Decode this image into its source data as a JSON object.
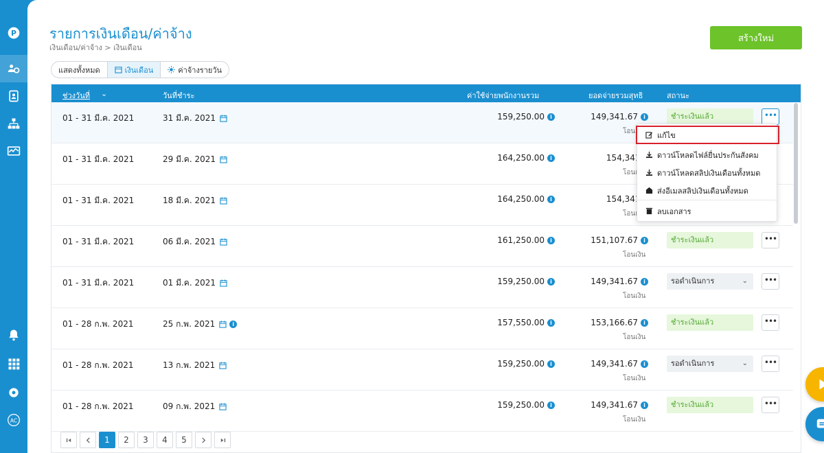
{
  "header": {
    "title": "รายการเงินเดือน/ค่าจ้าง",
    "breadcrumb": "เงินเดือน/ค่าจ้าง > เงินเดือน",
    "create_label": "สร้างใหม่"
  },
  "filters": [
    {
      "label": "แสดงทั้งหมด",
      "icon": "none"
    },
    {
      "label": "เงินเดือน",
      "icon": "calendar-icon",
      "active": true
    },
    {
      "label": "ค่าจ้างรายวัน",
      "icon": "sun-icon"
    }
  ],
  "table": {
    "columns": [
      "ช่วงวันที่",
      "วันที่ชำระ",
      "ค่าใช้จ่ายพนักงานรวม",
      "ยอดจ่ายรวมสุทธิ",
      "สถานะ"
    ],
    "rows": [
      {
        "period": "01 - 31 มี.ค. 2021",
        "pay_date": "31 มี.ค. 2021",
        "cost": "159,250.00",
        "net": "149,341.67",
        "net_sub": "โอนเงิน",
        "status": "ชำระเงินแล้ว",
        "status_type": "paid"
      },
      {
        "period": "01 - 31 มี.ค. 2021",
        "pay_date": "29 มี.ค. 2021",
        "cost": "164,250.00",
        "net": "154,341.6",
        "net_sub": "โอนเงิน",
        "status": "",
        "status_type": "hidden"
      },
      {
        "period": "01 - 31 มี.ค. 2021",
        "pay_date": "18 มี.ค. 2021",
        "cost": "164,250.00",
        "net": "154,341.6",
        "net_sub": "โอนเงิน",
        "status": "",
        "status_type": "hidden"
      },
      {
        "period": "01 - 31 มี.ค. 2021",
        "pay_date": "06 มี.ค. 2021",
        "cost": "161,250.00",
        "net": "151,107.67",
        "net_sub": "โอนเงิน",
        "status": "ชำระเงินแล้ว",
        "status_type": "paid"
      },
      {
        "period": "01 - 31 มี.ค. 2021",
        "pay_date": "01 มี.ค. 2021",
        "cost": "159,250.00",
        "net": "149,341.67",
        "net_sub": "โอนเงิน",
        "status": "รอดำเนินการ",
        "status_type": "pending"
      },
      {
        "period": "01 - 28 ก.พ. 2021",
        "pay_date": "25 ก.พ. 2021",
        "cost": "157,550.00",
        "net": "153,166.67",
        "net_sub": "โอนเงิน",
        "status": "ชำระเงินแล้ว",
        "status_type": "paid",
        "pay_info": true
      },
      {
        "period": "01 - 28 ก.พ. 2021",
        "pay_date": "13 ก.พ. 2021",
        "cost": "159,250.00",
        "net": "149,341.67",
        "net_sub": "โอนเงิน",
        "status": "รอดำเนินการ",
        "status_type": "pending"
      },
      {
        "period": "01 - 28 ก.พ. 2021",
        "pay_date": "09 ก.พ. 2021",
        "cost": "159,250.00",
        "net": "149,341.67",
        "net_sub": "โอนเงิน",
        "status": "ชำระเงินแล้ว",
        "status_type": "paid"
      }
    ]
  },
  "menu": {
    "items": [
      {
        "label": "แก้ไข",
        "icon": "edit-icon"
      },
      {
        "label": "ดาวน์โหลดไฟล์ยื่นประกันสังคม",
        "icon": "download-icon"
      },
      {
        "label": "ดาวน์โหลดสลิปเงินเดือนทั้งหมด",
        "icon": "download-icon"
      },
      {
        "label": "ส่งอีเมลสลิปเงินเดือนทั้งหมด",
        "icon": "mail-icon"
      },
      {
        "label": "ลบเอกสาร",
        "icon": "trash-icon"
      }
    ]
  },
  "pagination": {
    "pages": [
      "1",
      "2",
      "3",
      "4",
      "5"
    ],
    "current": "1"
  },
  "colors": {
    "accent": "#1a8fd0",
    "create": "#6cc32a",
    "paid_bg": "#e6f7dc",
    "paid_text": "#55a834",
    "highlight": "#d6202a",
    "fab_play": "#f7b500"
  }
}
